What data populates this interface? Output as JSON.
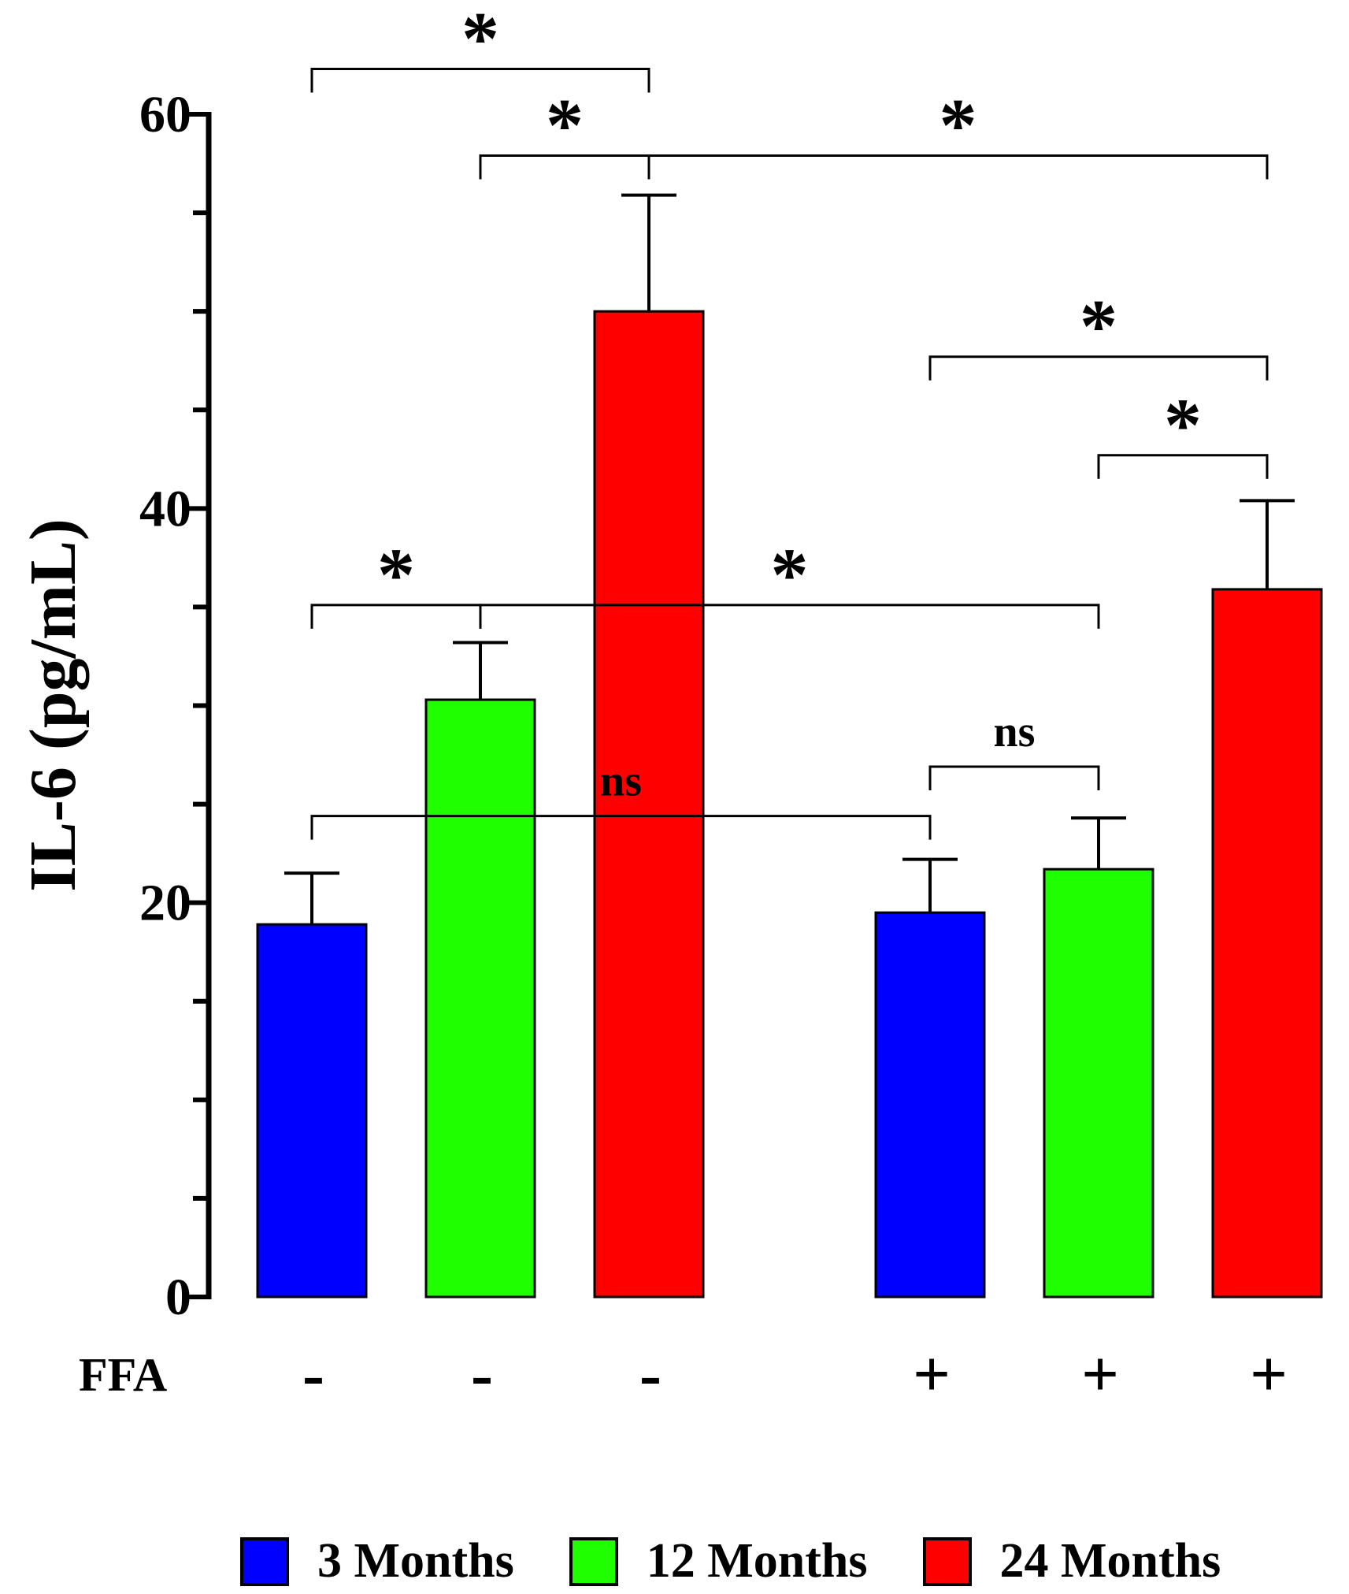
{
  "chart_data": {
    "type": "bar",
    "title": "",
    "ylabel": "IL-6 (pg/mL)",
    "xlabel": "",
    "ylim": [
      0,
      60
    ],
    "yticks_major": [
      0,
      20,
      40,
      60
    ],
    "ytick_step_minor": 5,
    "row_label": "FFA",
    "groups": [
      "-",
      "-",
      "-",
      "+",
      "+",
      "+"
    ],
    "bars": [
      {
        "series": "3 Months",
        "ffa": "-",
        "value": 18.9,
        "error": 2.6
      },
      {
        "series": "12 Months",
        "ffa": "-",
        "value": 30.3,
        "error": 2.9
      },
      {
        "series": "24 Months",
        "ffa": "-",
        "value": 50.0,
        "error": 5.9
      },
      {
        "series": "3 Months",
        "ffa": "+",
        "value": 19.5,
        "error": 2.7
      },
      {
        "series": "12 Months",
        "ffa": "+",
        "value": 21.7,
        "error": 2.6
      },
      {
        "series": "24 Months",
        "ffa": "+",
        "value": 35.9,
        "error": 4.5
      }
    ],
    "series": [
      {
        "name": "3 Months",
        "color": "#0000ff"
      },
      {
        "name": "12 Months",
        "color": "#1fff00"
      },
      {
        "name": "24 Months",
        "color": "#ff0000"
      }
    ],
    "comparisons": [
      {
        "from": 0,
        "to": 2,
        "level": 62.3,
        "label": "*"
      },
      {
        "from": 1,
        "to": 2,
        "level": 57.9,
        "label": "*"
      },
      {
        "from": 2,
        "to": 5,
        "level": 57.9,
        "label": "*"
      },
      {
        "from": 3,
        "to": 5,
        "level": 47.7,
        "label": "*"
      },
      {
        "from": 4,
        "to": 5,
        "level": 42.7,
        "label": "*"
      },
      {
        "from": 0,
        "to": 1,
        "level": 35.1,
        "label": "*"
      },
      {
        "from": 1,
        "to": 4,
        "level": 35.1,
        "label": "*"
      },
      {
        "from": 3,
        "to": 4,
        "level": 26.9,
        "label": "ns"
      },
      {
        "from": 0,
        "to": 3,
        "level": 24.4,
        "label": "ns"
      }
    ],
    "legend": {
      "position": "bottom",
      "entries": [
        "3 Months",
        "12 Months",
        "24 Months"
      ]
    }
  }
}
